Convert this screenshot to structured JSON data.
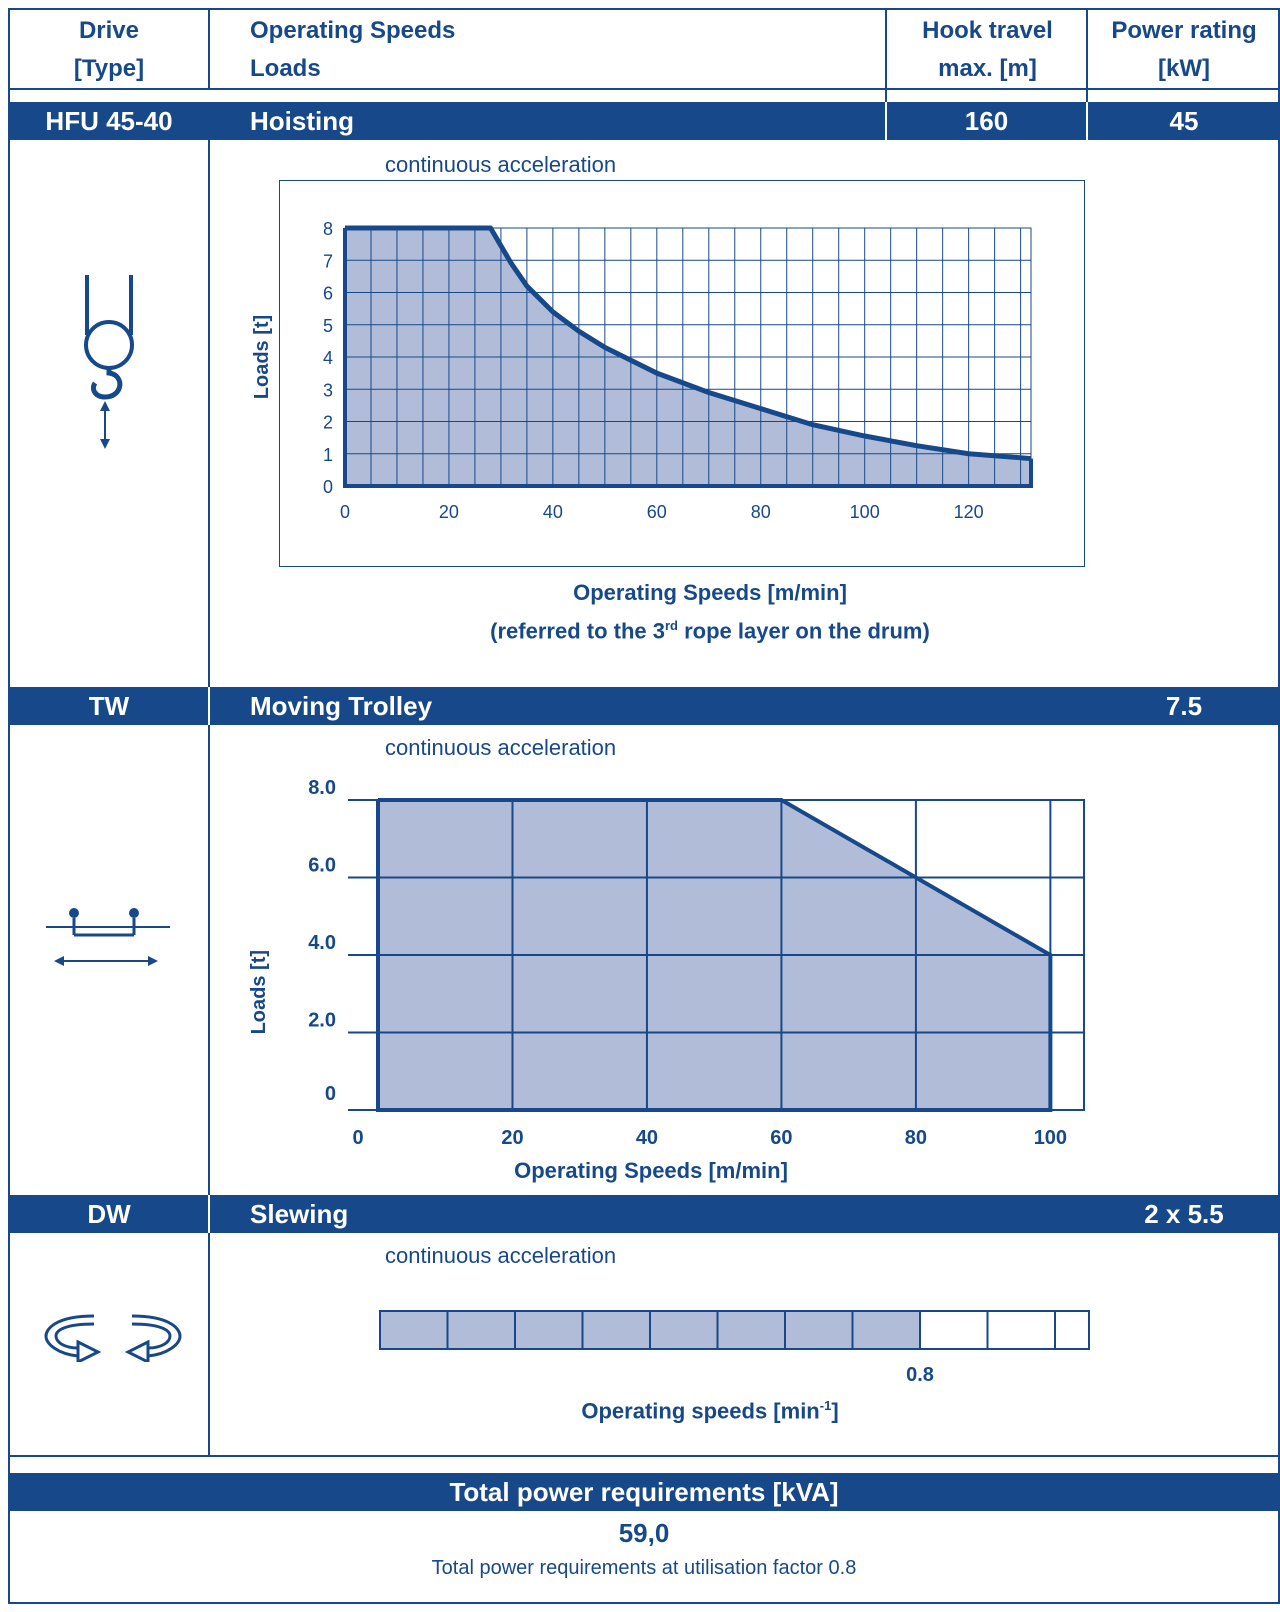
{
  "header": {
    "col1": [
      "Drive",
      "[Type]"
    ],
    "col2": [
      "Operating Speeds",
      "Loads"
    ],
    "col3": [
      "Hook travel",
      "max. [m]"
    ],
    "col4": [
      "Power rating",
      "[kW]"
    ]
  },
  "hoisting": {
    "type": "HFU 45-40",
    "name": "Hoisting",
    "hook_travel": "160",
    "power": "45",
    "accel_label": "continuous acceleration",
    "icon": "crane-hook-icon",
    "xlabel_line1": "Operating Speeds [m/min]",
    "xlabel_line2_pre": "(referred to the 3",
    "xlabel_line2_sup": "rd",
    "xlabel_line2_post": " rope layer on the drum)"
  },
  "trolley": {
    "type": "TW",
    "name": "Moving Trolley",
    "power": "7.5",
    "accel_label": "continuous acceleration",
    "icon": "trolley-icon"
  },
  "slewing": {
    "type": "DW",
    "name": "Slewing",
    "power": "2 x 5.5",
    "accel_label": "continuous acceleration",
    "icon": "slewing-arrows-icon",
    "value_label": "0.8",
    "xlabel_pre": "Operating speeds  [min",
    "xlabel_sup": "-1",
    "xlabel_post": "]"
  },
  "total": {
    "title": "Total power requirements  [kVA]",
    "value": "59,0",
    "note": "Total power requirements at utilisation factor 0.8"
  },
  "colors": {
    "brand": "#17498a",
    "fill": "#b1bdd8"
  },
  "chart_data": [
    {
      "type": "area",
      "title": "",
      "xlabel": "Operating Speeds [m/min]",
      "ylabel": "Loads [t]",
      "xlim": [
        0,
        132
      ],
      "ylim": [
        0,
        8
      ],
      "xticks": [
        0,
        20,
        40,
        60,
        80,
        100,
        120
      ],
      "yticks": [
        0,
        1,
        2,
        3,
        4,
        5,
        6,
        7,
        8
      ],
      "grid": true,
      "x": [
        0,
        28,
        32,
        35,
        40,
        45,
        50,
        55,
        60,
        70,
        80,
        90,
        100,
        110,
        120,
        132
      ],
      "y": [
        8,
        8,
        6.9,
        6.2,
        5.4,
        4.8,
        4.3,
        3.9,
        3.5,
        2.9,
        2.4,
        1.9,
        1.55,
        1.25,
        1.0,
        0.85
      ]
    },
    {
      "type": "area",
      "title": "",
      "xlabel": "Operating Speeds [m/min]",
      "ylabel": "Loads [t]",
      "xlim": [
        0,
        105
      ],
      "ylim": [
        0,
        8
      ],
      "xticks": [
        0,
        20,
        40,
        60,
        80,
        100
      ],
      "ytick_labels": [
        "0",
        "2.0",
        "4.0",
        "6.0",
        "8.0"
      ],
      "grid": true,
      "x": [
        0,
        60,
        80,
        100
      ],
      "y": [
        8,
        8,
        6,
        4
      ]
    },
    {
      "type": "bar",
      "title": "",
      "xlabel": "Operating speeds [min^-1]",
      "max_speed": 0.8,
      "filled_cells": 8,
      "total_cells": 11,
      "value_label": "0.8"
    }
  ]
}
